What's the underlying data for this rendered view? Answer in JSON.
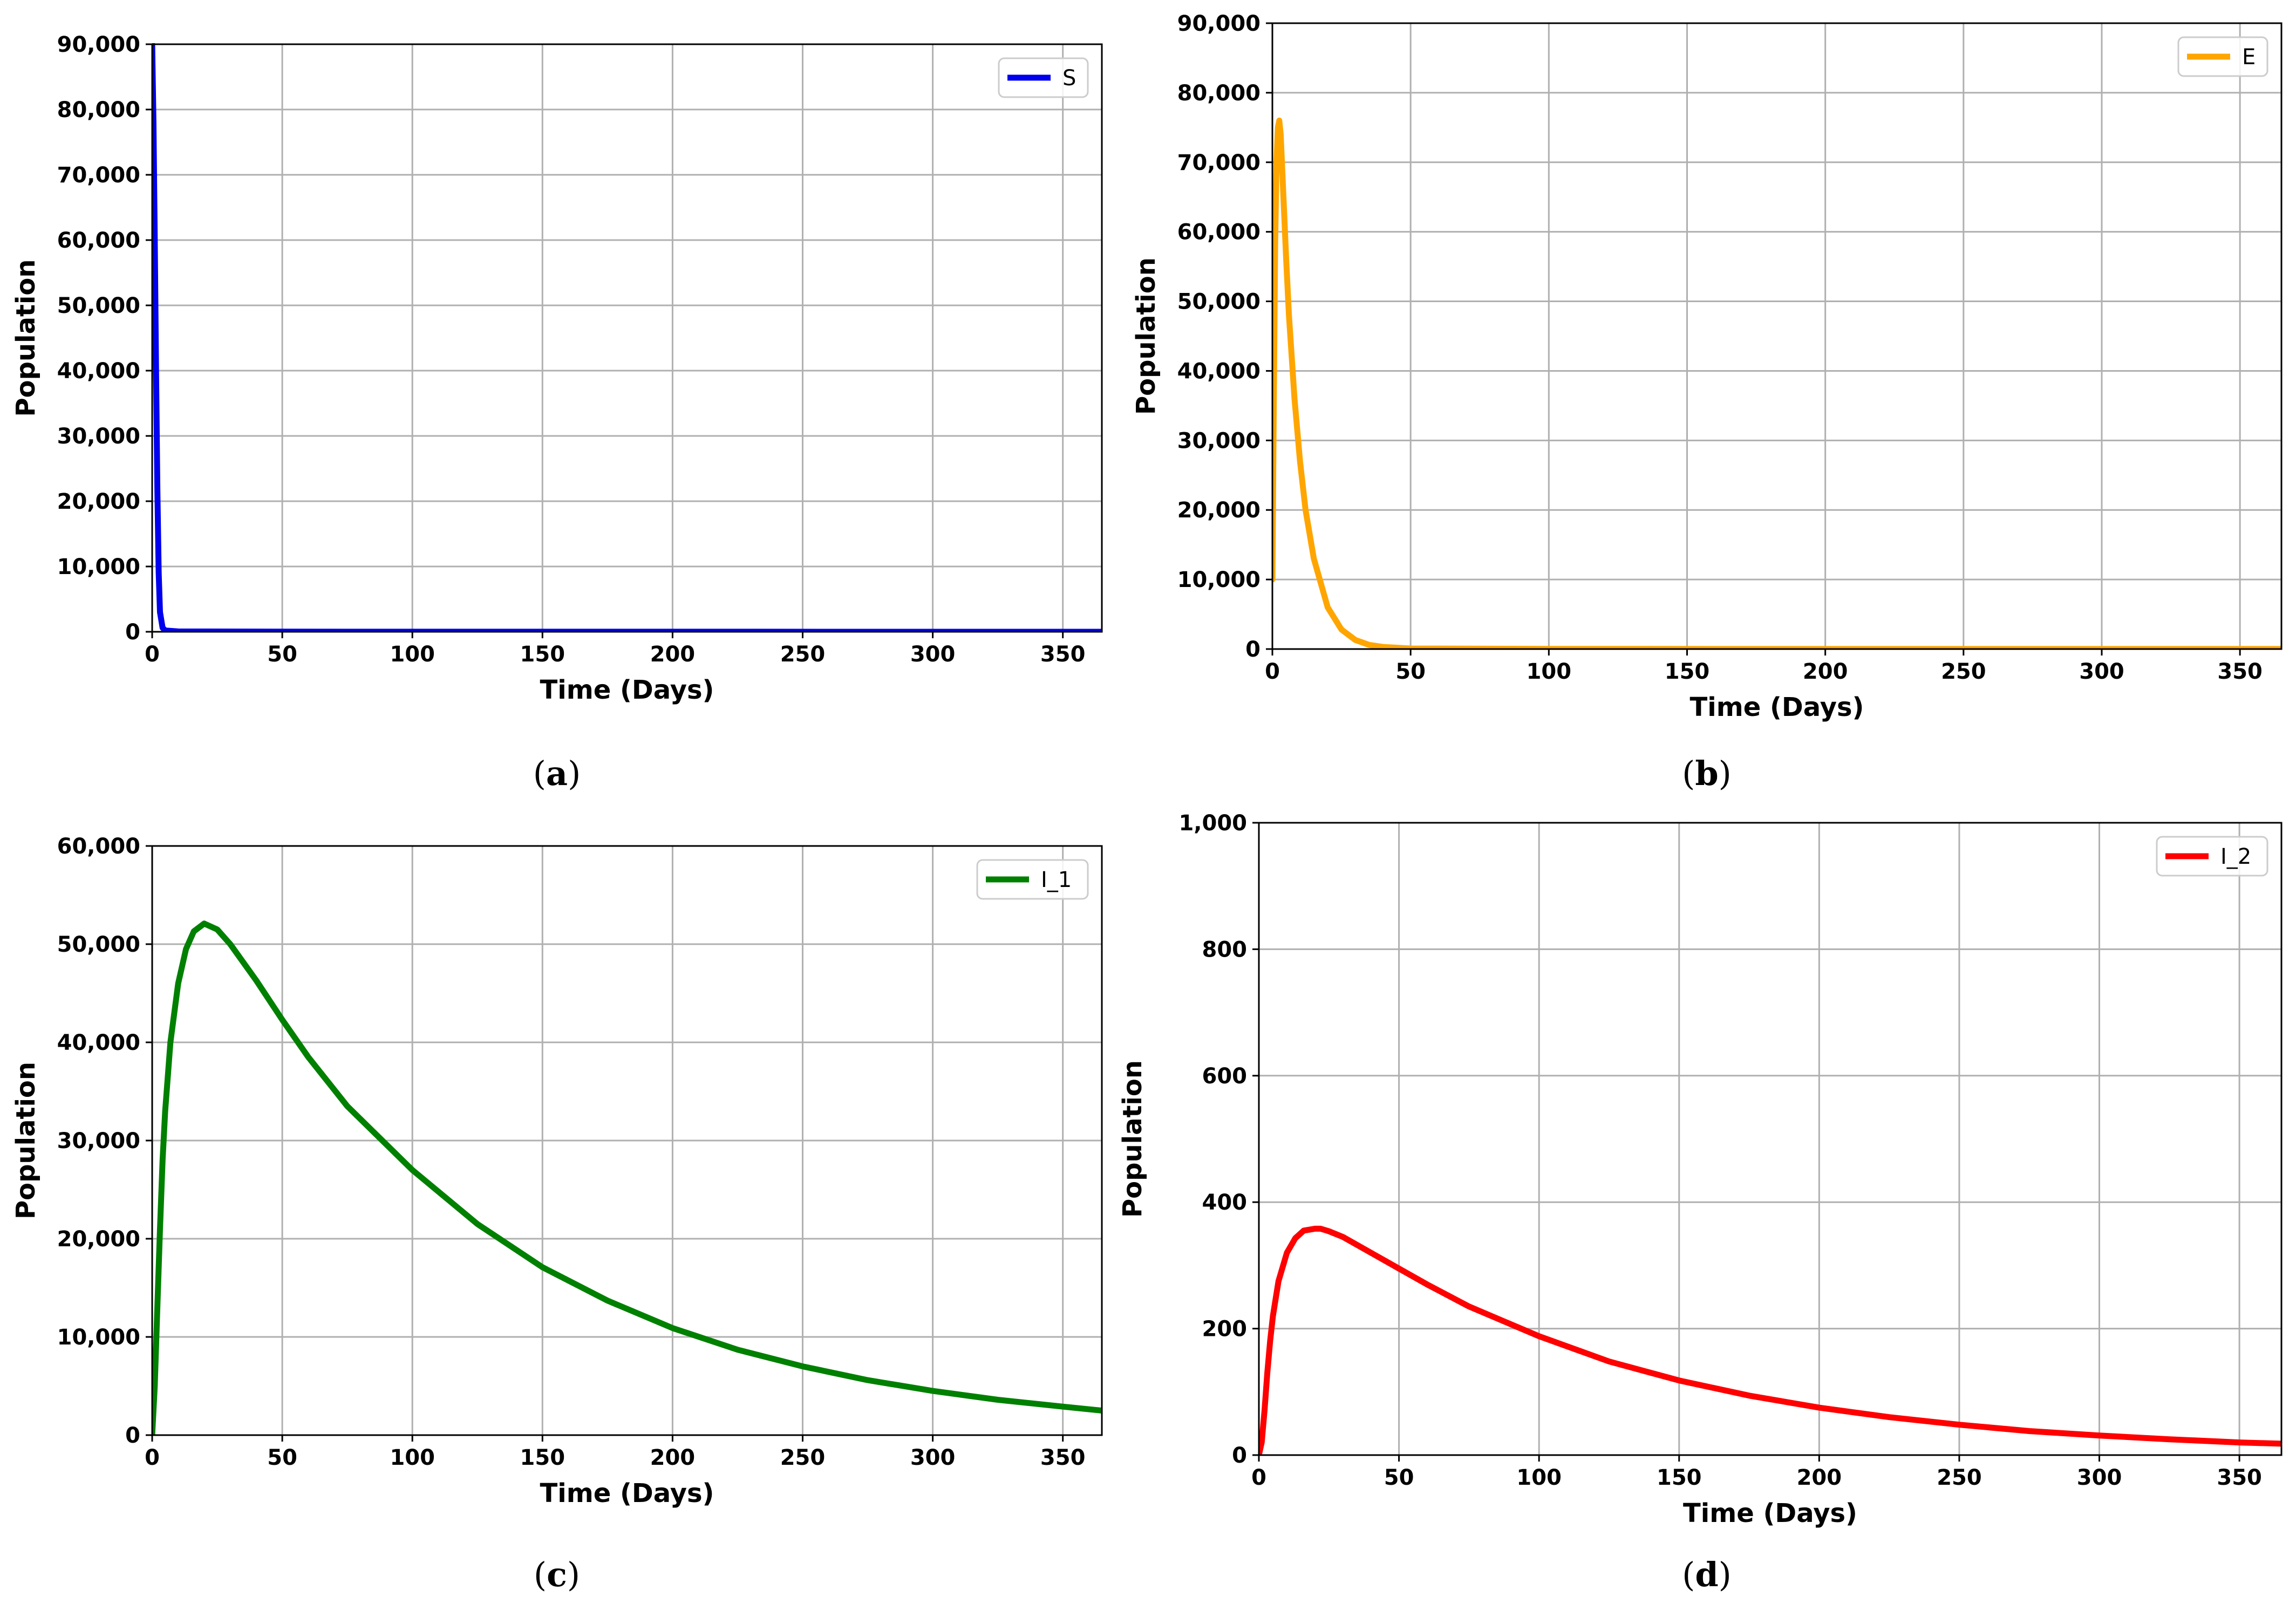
{
  "chart_data": [
    {
      "id": "a",
      "type": "line",
      "caption": "a",
      "title": "",
      "xlabel": "Time (Days)",
      "ylabel": "Population",
      "xlim": [
        0,
        365
      ],
      "ylim": [
        0,
        90000
      ],
      "xticks": [
        0,
        50,
        100,
        150,
        200,
        250,
        300,
        350
      ],
      "yticks": [
        0,
        10000,
        20000,
        30000,
        40000,
        50000,
        60000,
        70000,
        80000,
        90000
      ],
      "xtick_labels": [
        "0",
        "50",
        "100",
        "150",
        "200",
        "250",
        "300",
        "350"
      ],
      "ytick_labels": [
        "0",
        "10,000",
        "20,000",
        "30,000",
        "40,000",
        "50,000",
        "60,000",
        "70,000",
        "80,000",
        "90,000"
      ],
      "grid": true,
      "legend": "top-right",
      "series": [
        {
          "name": "S",
          "color": "#0000ee",
          "x": [
            0,
            0.5,
            1,
            1.5,
            2,
            2.5,
            3,
            4,
            5,
            10,
            50,
            100,
            200,
            300,
            365
          ],
          "y": [
            90000,
            78000,
            60000,
            40000,
            22000,
            9000,
            3000,
            600,
            200,
            50,
            20,
            10,
            5,
            3,
            2
          ]
        }
      ]
    },
    {
      "id": "b",
      "type": "line",
      "caption": "b",
      "title": "",
      "xlabel": "Time (Days)",
      "ylabel": "Population",
      "xlim": [
        0,
        365
      ],
      "ylim": [
        0,
        90000
      ],
      "xticks": [
        0,
        50,
        100,
        150,
        200,
        250,
        300,
        350
      ],
      "yticks": [
        0,
        10000,
        20000,
        30000,
        40000,
        50000,
        60000,
        70000,
        80000,
        90000
      ],
      "xtick_labels": [
        "0",
        "50",
        "100",
        "150",
        "200",
        "250",
        "300",
        "350"
      ],
      "ytick_labels": [
        "0",
        "10,000",
        "20,000",
        "30,000",
        "40,000",
        "50,000",
        "60,000",
        "70,000",
        "80,000",
        "90,000"
      ],
      "grid": true,
      "legend": "top-right",
      "series": [
        {
          "name": "E",
          "color": "#ffa500",
          "x": [
            0,
            0.5,
            1,
            1.5,
            2,
            2.5,
            3,
            4,
            5,
            6,
            8,
            10,
            12,
            15,
            20,
            25,
            30,
            35,
            40,
            50,
            100,
            200,
            300,
            365
          ],
          "y": [
            10000,
            35000,
            58000,
            70000,
            75000,
            76000,
            74000,
            65000,
            56000,
            48000,
            36000,
            27000,
            20000,
            13000,
            6000,
            2800,
            1300,
            600,
            300,
            80,
            20,
            10,
            5,
            5
          ]
        }
      ]
    },
    {
      "id": "c",
      "type": "line",
      "caption": "c",
      "title": "",
      "xlabel": "Time (Days)",
      "ylabel": "Population",
      "xlim": [
        0,
        365
      ],
      "ylim": [
        0,
        60000
      ],
      "xticks": [
        0,
        50,
        100,
        150,
        200,
        250,
        300,
        350
      ],
      "yticks": [
        0,
        10000,
        20000,
        30000,
        40000,
        50000,
        60000
      ],
      "xtick_labels": [
        "0",
        "50",
        "100",
        "150",
        "200",
        "250",
        "300",
        "350"
      ],
      "ytick_labels": [
        "0",
        "10,000",
        "20,000",
        "30,000",
        "40,000",
        "50,000",
        "60,000"
      ],
      "grid": true,
      "legend": "top-right",
      "series": [
        {
          "name": "I_1",
          "color": "#008000",
          "x": [
            0,
            1,
            2,
            3,
            4,
            5,
            7,
            10,
            13,
            16,
            20,
            25,
            30,
            40,
            50,
            60,
            75,
            100,
            125,
            150,
            175,
            200,
            225,
            250,
            275,
            300,
            325,
            350,
            365
          ],
          "y": [
            0,
            5000,
            13000,
            21000,
            28000,
            33000,
            40000,
            46000,
            49500,
            51300,
            52100,
            51500,
            50000,
            46300,
            42300,
            38500,
            33500,
            27000,
            21500,
            17100,
            13700,
            10900,
            8700,
            7000,
            5600,
            4500,
            3600,
            2900,
            2500
          ]
        }
      ]
    },
    {
      "id": "d",
      "type": "line",
      "caption": "d",
      "title": "",
      "xlabel": "Time (Days)",
      "ylabel": "Population",
      "xlim": [
        0,
        365
      ],
      "ylim": [
        0,
        1000
      ],
      "xticks": [
        0,
        50,
        100,
        150,
        200,
        250,
        300,
        350
      ],
      "yticks": [
        0,
        200,
        400,
        600,
        800,
        1000
      ],
      "xtick_labels": [
        "0",
        "50",
        "100",
        "150",
        "200",
        "250",
        "300",
        "350"
      ],
      "ytick_labels": [
        "0",
        "200",
        "400",
        "600",
        "800",
        "1,000"
      ],
      "grid": true,
      "legend": "top-right",
      "series": [
        {
          "name": "I_2",
          "color": "#ff0000",
          "x": [
            0,
            1,
            2,
            3,
            4,
            5,
            7,
            10,
            13,
            16,
            20,
            22,
            25,
            30,
            40,
            50,
            60,
            75,
            100,
            125,
            150,
            175,
            200,
            225,
            250,
            275,
            300,
            325,
            350,
            365
          ],
          "y": [
            0,
            20,
            70,
            130,
            180,
            220,
            275,
            320,
            343,
            355,
            358,
            358,
            354,
            345,
            320,
            295,
            270,
            235,
            188,
            148,
            118,
            94,
            75,
            60,
            48,
            38,
            31,
            25,
            20,
            18
          ]
        }
      ]
    }
  ]
}
